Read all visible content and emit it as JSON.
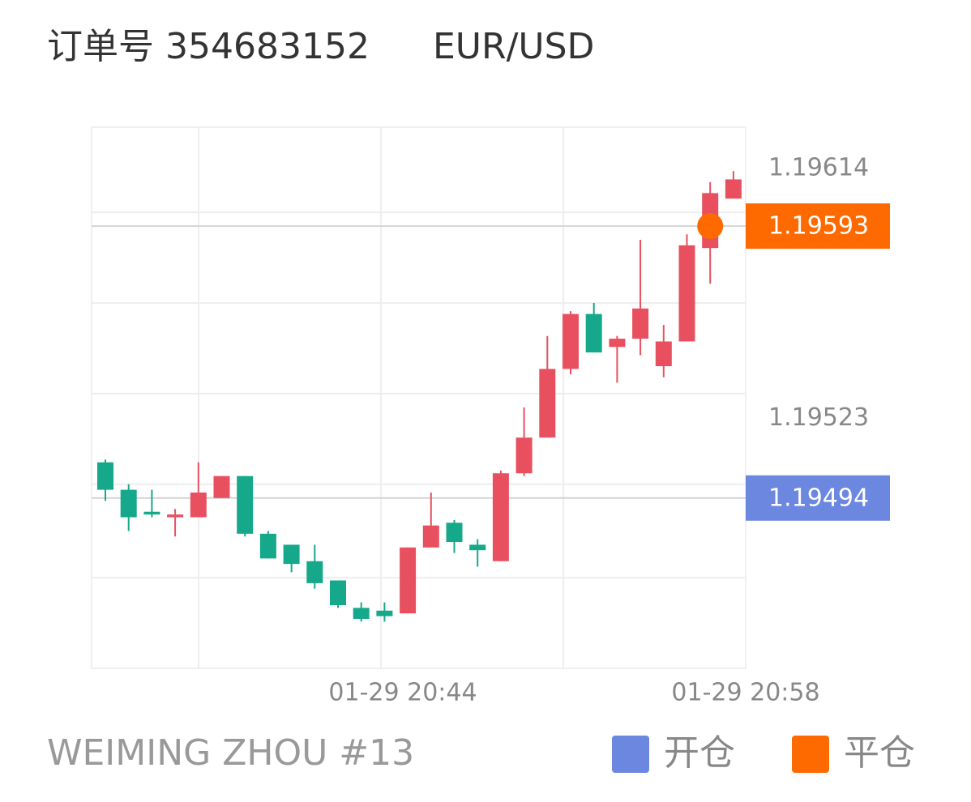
{
  "header": {
    "order": "订单号 354683152",
    "symbol": "EUR/USD"
  },
  "chart_data": {
    "type": "candlestick",
    "up_color": "#e8505f",
    "down_color": "#16a88a",
    "ylim": [
      1.19432,
      1.19629
    ],
    "yticks": [
      1.19614,
      1.19523
    ],
    "ygrid": [
      1.19598,
      1.19565,
      1.19532,
      1.19499,
      1.19465
    ],
    "xticks": [
      "01-29 20:44",
      "01-29 20:58"
    ],
    "open": [
      1.19507,
      1.19497,
      1.19489,
      1.19487,
      1.19487,
      1.19494,
      1.19502,
      1.19481,
      1.19477,
      1.19471,
      1.19464,
      1.19454,
      1.19453,
      1.19452,
      1.19476,
      1.19485,
      1.19477,
      1.19471,
      1.19503,
      1.19516,
      1.19541,
      1.19561,
      1.19549,
      1.19552,
      1.19542,
      1.19551,
      1.19585,
      1.19603
    ],
    "high": [
      1.19508,
      1.19499,
      1.19497,
      1.1949,
      1.19507,
      1.19502,
      1.19502,
      1.19482,
      1.19477,
      1.19477,
      1.19464,
      1.19456,
      1.19456,
      1.19476,
      1.19496,
      1.19486,
      1.19479,
      1.19504,
      1.19527,
      1.19553,
      1.19562,
      1.19565,
      1.19553,
      1.19588,
      1.19557,
      1.1959,
      1.19609,
      1.19613
    ],
    "low": [
      1.19493,
      1.19482,
      1.19487,
      1.1948,
      1.19487,
      1.19494,
      1.1948,
      1.19472,
      1.19467,
      1.19461,
      1.19454,
      1.19449,
      1.19449,
      1.19452,
      1.19476,
      1.19474,
      1.19469,
      1.19471,
      1.19502,
      1.19516,
      1.19539,
      1.19547,
      1.19536,
      1.19546,
      1.19538,
      1.19551,
      1.19572,
      1.19603
    ],
    "close": [
      1.19497,
      1.19487,
      1.19488,
      1.19488,
      1.19496,
      1.19502,
      1.19481,
      1.19472,
      1.1947,
      1.19463,
      1.19455,
      1.1945,
      1.19451,
      1.19476,
      1.19484,
      1.19478,
      1.19475,
      1.19503,
      1.19516,
      1.19541,
      1.19561,
      1.19547,
      1.19552,
      1.19563,
      1.19551,
      1.19586,
      1.19605,
      1.1961
    ],
    "markers": [
      {
        "name": "开仓",
        "color": "#6b87e0",
        "value": 1.19494
      },
      {
        "name": "平仓",
        "color": "#ff6a00",
        "value": 1.19593
      }
    ]
  },
  "footer": {
    "account": "WEIMING ZHOU #13"
  }
}
